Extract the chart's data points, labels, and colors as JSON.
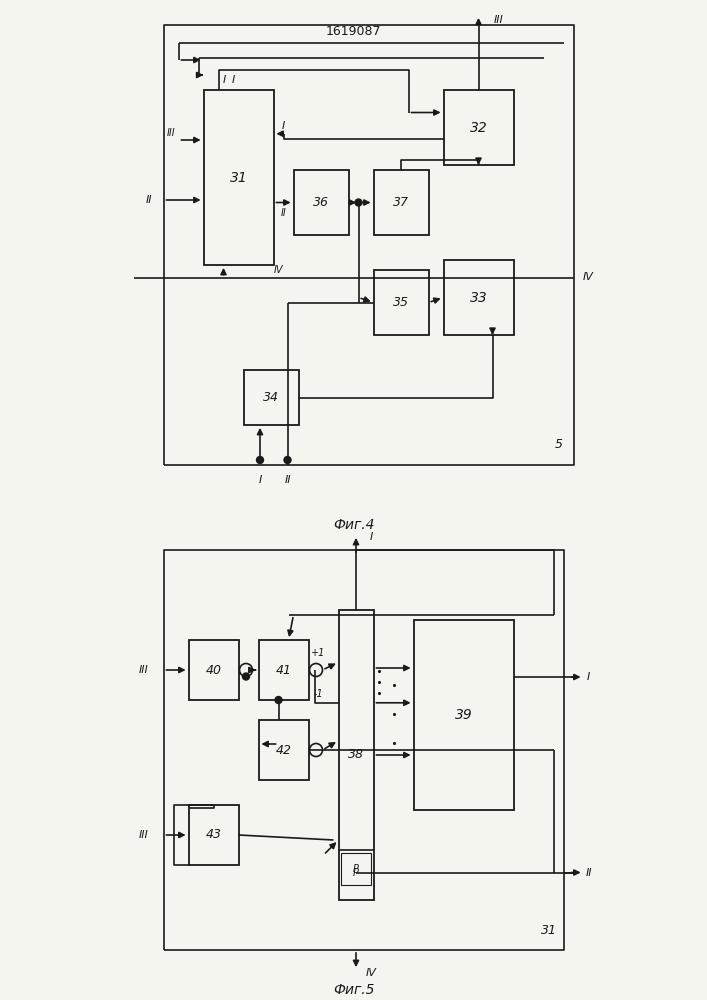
{
  "title": "1619087",
  "fig4_label": "Фиг.4",
  "fig5_label": "Фиг.5",
  "bg_color": "#f5f5f0",
  "line_color": "#1a1a1a",
  "box_color": "#f5f5f0",
  "box_edge": "#1a1a1a"
}
